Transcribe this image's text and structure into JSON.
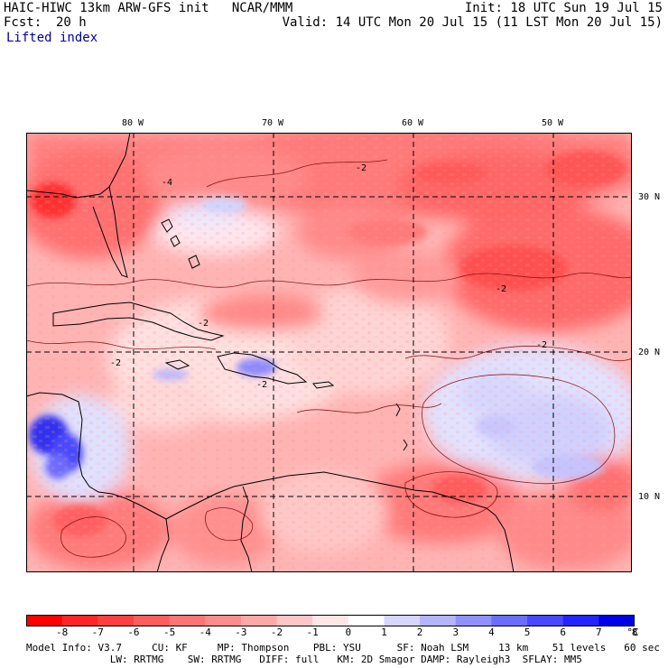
{
  "header": {
    "model_line": "HAIC-HIWC 13km ARW-GFS init   NCAR/MMM",
    "init": "Init: 18 UTC Sun 19 Jul 15",
    "fcst_label": "Fcst:",
    "fcst_value": "20 h",
    "valid": "Valid: 14 UTC Mon 20 Jul 15 (11 LST Mon 20 Jul 15)",
    "field": "Lifted index"
  },
  "map": {
    "lon_labels": [
      "80 W",
      "70 W",
      "60 W",
      "50 W"
    ],
    "lat_labels": [
      "30 N",
      "20 N",
      "10 N"
    ],
    "contour_labels": [
      "-2",
      "-2",
      "-2",
      "-2",
      "-2",
      "-4",
      "-2"
    ]
  },
  "colorbar": {
    "labels": [
      "-8",
      "-7",
      "-6",
      "-5",
      "-4",
      "-3",
      "-2",
      "-1",
      "0",
      "1",
      "2",
      "3",
      "4",
      "5",
      "6",
      "7",
      "8"
    ],
    "unit": "°C",
    "colors": [
      "#ff0000",
      "#ff2525",
      "#ff4040",
      "#ff5c5c",
      "#ff7474",
      "#ff8c8c",
      "#ffa8a8",
      "#ffc6c6",
      "#ffe6e6",
      "#ffffff",
      "#d6d6ff",
      "#b4b4ff",
      "#9090ff",
      "#6c6cff",
      "#4848ff",
      "#2424ff",
      "#0000e6"
    ]
  },
  "footer": {
    "line1": "Model Info: V3.7     CU: KF     MP: Thompson    PBL: YSU      SF: Noah LSM     13 km    51 levels   60 sec",
    "line2": "              LW: RRTMG    SW: RRTMG   DIFF: full   KM: 2D Smagor DAMP: Rayleigh3  SFLAY: MM5"
  }
}
